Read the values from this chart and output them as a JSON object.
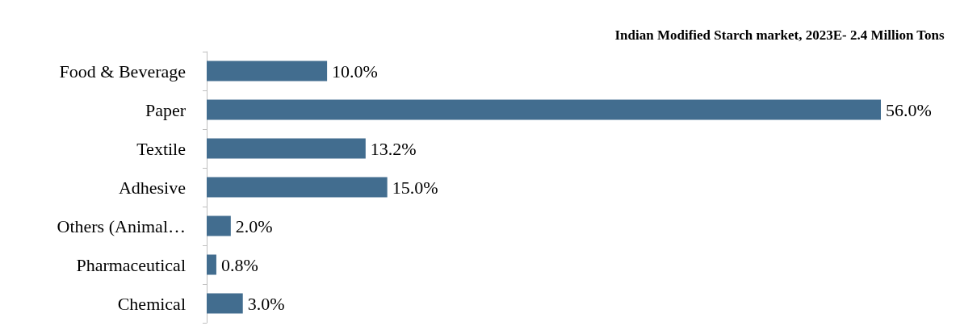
{
  "chart_data": {
    "type": "bar",
    "orientation": "horizontal",
    "title": "Indian Modified Starch market, 2023E- 2.4 Million Tons",
    "categories": [
      "Food & Beverage",
      "Paper",
      "Textile",
      "Adhesive",
      "Others (Animal…",
      "Pharmaceutical",
      "Chemical"
    ],
    "values": [
      10.0,
      56.0,
      13.2,
      15.0,
      2.0,
      0.8,
      3.0
    ],
    "value_labels": [
      "10.0%",
      "56.0%",
      "13.2%",
      "15.0%",
      "2.0%",
      "0.8%",
      "3.0%"
    ],
    "color": "#426d8f",
    "tick_labels": "y"
  }
}
